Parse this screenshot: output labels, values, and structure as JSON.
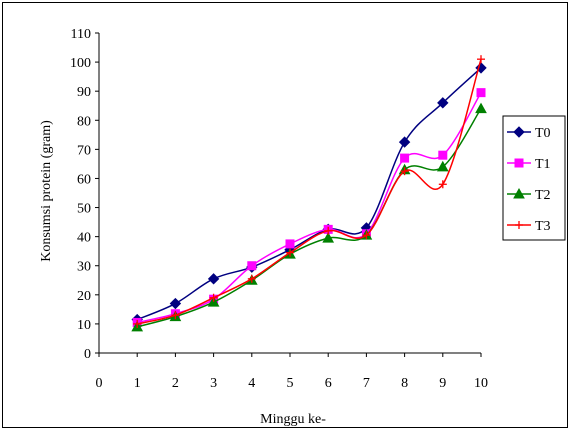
{
  "chart_data": {
    "type": "line",
    "xlabel": "Minggu ke-",
    "ylabel": "Konsumsi protein (gram)",
    "xlim": [
      0,
      10
    ],
    "ylim": [
      0,
      110
    ],
    "x_ticks": [
      0,
      1,
      2,
      3,
      4,
      5,
      6,
      7,
      8,
      9,
      10
    ],
    "y_ticks": [
      0,
      10,
      20,
      30,
      40,
      50,
      60,
      70,
      80,
      90,
      100,
      110
    ],
    "x": [
      1,
      2,
      3,
      4,
      5,
      6,
      7,
      8,
      9,
      10
    ],
    "grid": false,
    "legend_position": "right",
    "series": [
      {
        "name": "T0",
        "color": "#000080",
        "marker": "diamond",
        "values": [
          11.5,
          17,
          25.5,
          29.5,
          35.5,
          42.5,
          43,
          72.5,
          86,
          98
        ]
      },
      {
        "name": "T1",
        "color": "#ff00ff",
        "marker": "square",
        "values": [
          10.5,
          13.5,
          18.5,
          30,
          37.5,
          42.5,
          41,
          67,
          68,
          89.5
        ]
      },
      {
        "name": "T2",
        "color": "#008000",
        "marker": "triangle",
        "values": [
          9,
          12.5,
          17.5,
          25,
          34,
          39.5,
          40.5,
          63,
          64,
          84
        ]
      },
      {
        "name": "T3",
        "color": "#ff0000",
        "marker": "plus",
        "values": [
          10,
          13,
          19,
          25.5,
          34.5,
          42,
          40.5,
          62.5,
          58,
          101
        ]
      }
    ]
  }
}
